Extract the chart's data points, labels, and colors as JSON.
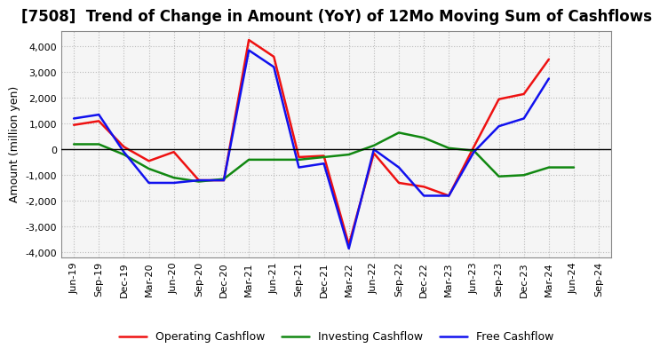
{
  "title": "[7508]  Trend of Change in Amount (YoY) of 12Mo Moving Sum of Cashflows",
  "ylabel": "Amount (million yen)",
  "xlabels": [
    "Jun-19",
    "Sep-19",
    "Dec-19",
    "Mar-20",
    "Jun-20",
    "Sep-20",
    "Dec-20",
    "Mar-21",
    "Jun-21",
    "Sep-21",
    "Dec-21",
    "Mar-22",
    "Jun-22",
    "Sep-22",
    "Dec-22",
    "Mar-23",
    "Jun-23",
    "Sep-23",
    "Dec-23",
    "Mar-24",
    "Jun-24",
    "Sep-24"
  ],
  "operating": [
    950,
    1100,
    100,
    -450,
    -100,
    -1200,
    -1200,
    4250,
    3600,
    -300,
    -250,
    -3700,
    -150,
    -1300,
    -1450,
    -1800,
    100,
    1950,
    2150,
    3500,
    null,
    null
  ],
  "investing": [
    200,
    200,
    -200,
    -750,
    -1100,
    -1250,
    -1150,
    -400,
    -400,
    -400,
    -300,
    -200,
    150,
    650,
    450,
    50,
    -50,
    -1050,
    -1000,
    -700,
    -700,
    null
  ],
  "free": [
    1200,
    1350,
    -100,
    -1300,
    -1300,
    -1200,
    -1200,
    3850,
    3200,
    -700,
    -550,
    -3850,
    0,
    -700,
    -1800,
    -1800,
    -100,
    900,
    1200,
    2750,
    null,
    null
  ],
  "ylim": [
    -4200,
    4600
  ],
  "yticks": [
    -4000,
    -3000,
    -2000,
    -1000,
    0,
    1000,
    2000,
    3000,
    4000
  ],
  "operating_color": "#EE1111",
  "investing_color": "#118811",
  "free_color": "#1111EE",
  "bg_color": "#FFFFFF",
  "plot_bg_color": "#F5F5F5",
  "grid_color": "#BBBBBB",
  "title_fontsize": 12,
  "axis_fontsize": 9,
  "tick_fontsize": 8,
  "legend_fontsize": 9
}
